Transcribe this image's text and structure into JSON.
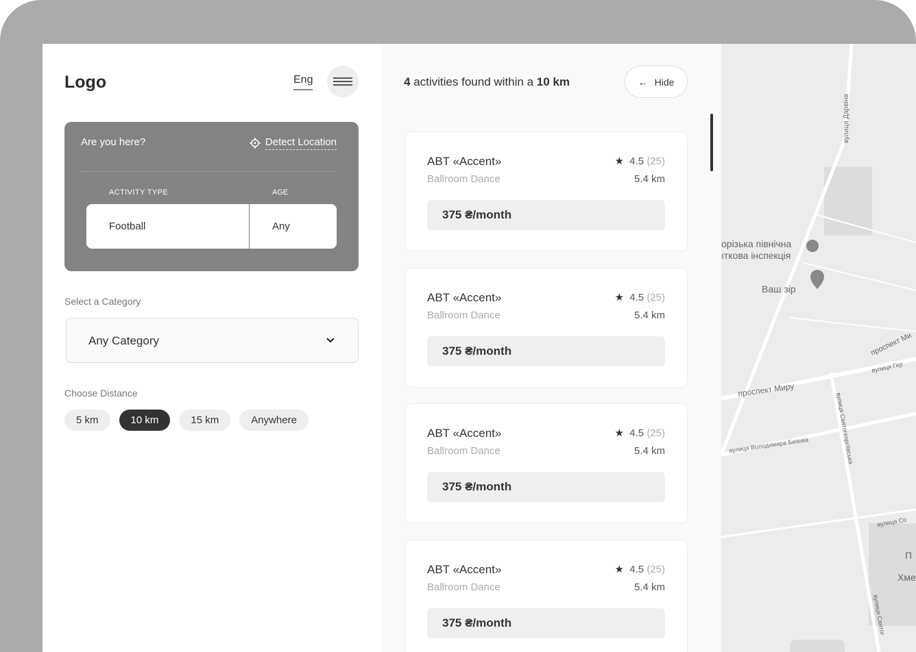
{
  "header": {
    "logo": "Logo",
    "language": "Eng",
    "menu_icon": "hamburger-icon"
  },
  "location_box": {
    "question": "Are you here?",
    "detect_label": "Detect Location",
    "activity_type_label": "ACTIVITY TYPE",
    "age_label": "AGE",
    "activity_type_value": "Football",
    "age_value": "Any"
  },
  "category": {
    "label": "Select a Category",
    "value": "Any Category"
  },
  "distance": {
    "label": "Choose Distance",
    "options": [
      "5 km",
      "10 km",
      "15 km",
      "Anywhere"
    ],
    "selected": "10 km"
  },
  "results": {
    "count": "4",
    "text1": "activities  found within a",
    "distance": "10 km",
    "hide_label": "Hide"
  },
  "cards": [
    {
      "name": "ABT «Accent»",
      "type": "Ballroom Dance",
      "rating": "4.5",
      "reviews": "(25)",
      "distance": "5.4 km",
      "price": "375 ₴/month"
    },
    {
      "name": "ABT «Accent»",
      "type": "Ballroom Dance",
      "rating": "4.5",
      "reviews": "(25)",
      "distance": "5.4 km",
      "price": "375 ₴/month"
    },
    {
      "name": "ABT «Accent»",
      "type": "Ballroom Dance",
      "rating": "4.5",
      "reviews": "(25)",
      "distance": "5.4 km",
      "price": "375 ₴/month"
    },
    {
      "name": "ABT «Accent»",
      "type": "Ballroom Dance",
      "rating": "4.5",
      "reviews": "(25)",
      "distance": "5.4 km",
      "price": "375 ₴/month"
    }
  ],
  "map": {
    "labels": {
      "darvina": "вулиця Дарвіна",
      "insp1": "орізька північна",
      "insp2": "ıткова інспекція",
      "vash_zir": "Ваш зір",
      "myru": "проспект Миру",
      "myru2": "проспект Ми",
      "gero": "вулиця Гер",
      "byzova": "вулиця Володимира Бизова",
      "sviato": "вулиця Святогеоргіївська",
      "so": "вулиця Со",
      "khme": "Хме",
      "sviato2": "вулиця Святог",
      "p": "П"
    }
  }
}
